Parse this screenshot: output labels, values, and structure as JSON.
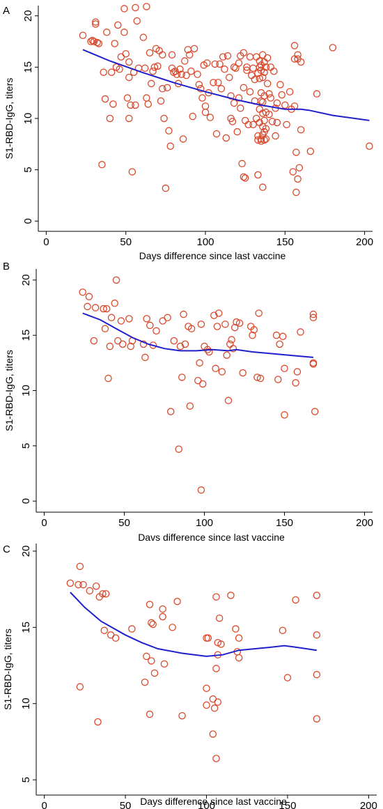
{
  "colors": {
    "point": "#d9482b",
    "trend": "#1f1fcc",
    "axis": "#000000"
  },
  "chart_data": [
    {
      "type": "scatter",
      "panel_label": "A",
      "xlabel": "Days difference since last vaccine",
      "ylabel": "S1-RBD-IgG, titers",
      "xlim": [
        -5,
        205
      ],
      "ylim": [
        -1,
        21
      ],
      "xticks": [
        0,
        50,
        100,
        150,
        200
      ],
      "yticks": [
        0,
        5,
        10,
        15,
        20
      ],
      "grid": false,
      "points": [
        [
          23,
          18.1
        ],
        [
          28,
          17.5
        ],
        [
          29,
          17.6
        ],
        [
          30,
          17.5
        ],
        [
          31,
          19.2
        ],
        [
          31,
          19.4
        ],
        [
          32,
          17.4
        ],
        [
          33,
          17.3
        ],
        [
          35,
          5.5
        ],
        [
          36,
          14.5
        ],
        [
          37,
          11.9
        ],
        [
          38,
          18.4
        ],
        [
          40,
          10.0
        ],
        [
          41,
          14.5
        ],
        [
          42,
          11.4
        ],
        [
          43,
          17.3
        ],
        [
          44,
          15.0
        ],
        [
          45,
          19.1
        ],
        [
          46,
          14.8
        ],
        [
          47,
          16.0
        ],
        [
          49,
          20.7
        ],
        [
          49,
          18.4
        ],
        [
          50,
          16.3
        ],
        [
          51,
          12.0
        ],
        [
          52,
          14.0
        ],
        [
          52,
          10.0
        ],
        [
          52,
          15.5
        ],
        [
          53,
          11.3
        ],
        [
          54,
          4.8
        ],
        [
          55,
          14.5
        ],
        [
          56,
          20.8
        ],
        [
          56,
          11.3
        ],
        [
          57,
          19.5
        ],
        [
          58,
          14.9
        ],
        [
          61,
          17.9
        ],
        [
          62,
          14.9
        ],
        [
          63,
          20.9
        ],
        [
          63,
          12.0
        ],
        [
          64,
          11.4
        ],
        [
          65,
          16.4
        ],
        [
          66,
          13.4
        ],
        [
          67,
          14.6
        ],
        [
          68,
          15.0
        ],
        [
          69,
          16.8
        ],
        [
          70,
          15.1
        ],
        [
          71,
          16.6
        ],
        [
          72,
          11.7
        ],
        [
          73,
          16.2
        ],
        [
          73,
          12.9
        ],
        [
          74,
          10.0
        ],
        [
          75,
          3.2
        ],
        [
          76,
          13.0
        ],
        [
          77,
          8.8
        ],
        [
          78,
          7.3
        ],
        [
          79,
          16.2
        ],
        [
          79,
          14.9
        ],
        [
          80,
          14.5
        ],
        [
          81,
          14.6
        ],
        [
          82,
          14.3
        ],
        [
          83,
          13.4
        ],
        [
          84,
          14.8
        ],
        [
          85,
          14.3
        ],
        [
          86,
          8.0
        ],
        [
          87,
          15.6
        ],
        [
          88,
          14.2
        ],
        [
          89,
          16.7
        ],
        [
          90,
          16.2
        ],
        [
          91,
          14.6
        ],
        [
          92,
          10.2
        ],
        [
          93,
          16.8
        ],
        [
          95,
          14.3
        ],
        [
          96,
          13.3
        ],
        [
          97,
          12.9
        ],
        [
          98,
          12.0
        ],
        [
          99,
          15.2
        ],
        [
          100,
          10.6
        ],
        [
          100,
          11.2
        ],
        [
          101,
          15.4
        ],
        [
          102,
          12.5
        ],
        [
          103,
          10.1
        ],
        [
          105,
          13.5
        ],
        [
          106,
          15.3
        ],
        [
          107,
          8.5
        ],
        [
          108,
          13.5
        ],
        [
          109,
          15.3
        ],
        [
          110,
          12.9
        ],
        [
          111,
          16.0
        ],
        [
          112,
          14.8
        ],
        [
          113,
          8.1
        ],
        [
          114,
          16.1
        ],
        [
          115,
          14.0
        ],
        [
          116,
          10.0
        ],
        [
          116,
          12.2
        ],
        [
          117,
          9.7
        ],
        [
          118,
          11.5
        ],
        [
          118,
          15.0
        ],
        [
          119,
          14.9
        ],
        [
          120,
          8.7
        ],
        [
          121,
          12.0
        ],
        [
          121,
          15.4
        ],
        [
          122,
          16.1
        ],
        [
          122,
          11.0
        ],
        [
          123,
          5.6
        ],
        [
          124,
          13.0
        ],
        [
          124,
          16.4
        ],
        [
          124,
          4.3
        ],
        [
          125,
          9.8
        ],
        [
          125,
          4.2
        ],
        [
          126,
          15.0
        ],
        [
          126,
          14.7
        ],
        [
          127,
          9.4
        ],
        [
          128,
          12.6
        ],
        [
          128,
          16.0
        ],
        [
          129,
          14.2
        ],
        [
          130,
          9.4
        ],
        [
          130,
          14.9
        ],
        [
          131,
          11.7
        ],
        [
          131,
          13.8
        ],
        [
          132,
          16.0
        ],
        [
          132,
          10.0
        ],
        [
          133,
          14.4
        ],
        [
          133,
          7.9
        ],
        [
          133,
          8.3
        ],
        [
          133,
          4.5
        ],
        [
          134,
          15.6
        ],
        [
          134,
          15.0
        ],
        [
          134,
          13.9
        ],
        [
          134,
          10.9
        ],
        [
          134,
          9.6
        ],
        [
          135,
          15.2
        ],
        [
          135,
          14.7
        ],
        [
          135,
          12.5
        ],
        [
          135,
          11.7
        ],
        [
          135,
          8.0
        ],
        [
          135,
          7.8
        ],
        [
          136,
          16.2
        ],
        [
          136,
          14.0
        ],
        [
          136,
          11.6
        ],
        [
          136,
          10.5
        ],
        [
          136,
          9.2
        ],
        [
          136,
          8.4
        ],
        [
          136,
          3.3
        ],
        [
          137,
          15.5
        ],
        [
          137,
          14.5
        ],
        [
          137,
          12.2
        ],
        [
          137,
          9.8
        ],
        [
          137,
          8.7
        ],
        [
          137,
          7.9
        ],
        [
          138,
          15.0
        ],
        [
          138,
          10.6
        ],
        [
          138,
          9.0
        ],
        [
          138,
          8.0
        ],
        [
          139,
          15.9
        ],
        [
          139,
          13.4
        ],
        [
          140,
          12.4
        ],
        [
          140,
          10.4
        ],
        [
          141,
          15.0
        ],
        [
          141,
          12.0
        ],
        [
          142,
          9.7
        ],
        [
          143,
          14.6
        ],
        [
          144,
          11.0
        ],
        [
          144,
          8.3
        ],
        [
          145,
          11.5
        ],
        [
          145,
          9.6
        ],
        [
          147,
          13.3
        ],
        [
          148,
          12.3
        ],
        [
          150,
          11.3
        ],
        [
          151,
          9.4
        ],
        [
          153,
          12.6
        ],
        [
          154,
          10.9
        ],
        [
          155,
          4.8
        ],
        [
          156,
          17.1
        ],
        [
          156,
          15.8
        ],
        [
          156,
          11.2
        ],
        [
          157,
          6.7
        ],
        [
          157,
          2.8
        ],
        [
          158,
          16.2
        ],
        [
          158,
          15.8
        ],
        [
          158,
          4.1
        ],
        [
          159,
          5.2
        ],
        [
          160,
          15.5
        ],
        [
          160,
          8.9
        ],
        [
          166,
          6.8
        ],
        [
          170,
          12.4
        ],
        [
          180,
          16.9
        ],
        [
          203,
          7.3
        ]
      ],
      "trend": [
        [
          23,
          16.7
        ],
        [
          40,
          15.6
        ],
        [
          60,
          14.5
        ],
        [
          80,
          13.5
        ],
        [
          100,
          12.6
        ],
        [
          120,
          11.8
        ],
        [
          135,
          11.3
        ],
        [
          150,
          10.9
        ],
        [
          160,
          10.9
        ],
        [
          165,
          10.8
        ],
        [
          180,
          10.3
        ],
        [
          203,
          9.8
        ]
      ]
    },
    {
      "type": "scatter",
      "panel_label": "B",
      "xlabel": "Davs difference since last vaccine",
      "ylabel": "S1-RBD-IgG, titers",
      "xlim": [
        -5,
        205
      ],
      "ylim": [
        -1,
        21
      ],
      "xticks": [
        0,
        50,
        100,
        150,
        200
      ],
      "yticks": [
        0,
        5,
        10,
        15,
        20
      ],
      "grid": false,
      "points": [
        [
          24,
          18.9
        ],
        [
          27,
          17.6
        ],
        [
          28,
          18.5
        ],
        [
          31,
          14.5
        ],
        [
          32,
          17.5
        ],
        [
          37,
          17.4
        ],
        [
          38,
          15.6
        ],
        [
          39,
          17.4
        ],
        [
          40,
          11.1
        ],
        [
          41,
          14.0
        ],
        [
          42,
          16.6
        ],
        [
          44,
          17.9
        ],
        [
          45,
          20.0
        ],
        [
          46,
          14.5
        ],
        [
          48,
          16.3
        ],
        [
          49,
          14.2
        ],
        [
          53,
          16.5
        ],
        [
          54,
          14.0
        ],
        [
          55,
          14.5
        ],
        [
          62,
          14.2
        ],
        [
          63,
          13.0
        ],
        [
          64,
          16.5
        ],
        [
          66,
          15.9
        ],
        [
          68,
          14.1
        ],
        [
          70,
          15.4
        ],
        [
          74,
          16.3
        ],
        [
          77,
          16.6
        ],
        [
          79,
          8.1
        ],
        [
          81,
          14.5
        ],
        [
          84,
          4.7
        ],
        [
          85,
          14.0
        ],
        [
          86,
          11.2
        ],
        [
          87,
          16.9
        ],
        [
          88,
          14.2
        ],
        [
          90,
          15.8
        ],
        [
          91,
          8.6
        ],
        [
          92,
          15.6
        ],
        [
          96,
          10.9
        ],
        [
          97,
          12.5
        ],
        [
          98,
          16.0
        ],
        [
          98,
          1.0
        ],
        [
          99,
          10.6
        ],
        [
          100,
          14.0
        ],
        [
          102,
          13.7
        ],
        [
          103,
          13.5
        ],
        [
          106,
          16.8
        ],
        [
          107,
          12.0
        ],
        [
          108,
          15.8
        ],
        [
          109,
          17.0
        ],
        [
          111,
          11.7
        ],
        [
          113,
          16.0
        ],
        [
          114,
          13.2
        ],
        [
          115,
          9.1
        ],
        [
          116,
          14.2
        ],
        [
          117,
          14.6
        ],
        [
          118,
          13.8
        ],
        [
          119,
          15.7
        ],
        [
          120,
          16.2
        ],
        [
          122,
          16.1
        ],
        [
          124,
          11.6
        ],
        [
          129,
          15.8
        ],
        [
          130,
          15.0
        ],
        [
          131,
          15.5
        ],
        [
          133,
          11.2
        ],
        [
          134,
          17.0
        ],
        [
          135,
          11.1
        ],
        [
          145,
          15.0
        ],
        [
          146,
          11.0
        ],
        [
          147,
          14.2
        ],
        [
          149,
          14.9
        ],
        [
          150,
          7.8
        ],
        [
          150,
          12.0
        ],
        [
          157,
          10.7
        ],
        [
          158,
          11.7
        ],
        [
          160,
          15.3
        ],
        [
          168,
          16.9
        ],
        [
          168,
          16.6
        ],
        [
          168,
          12.4
        ],
        [
          168,
          12.5
        ],
        [
          169,
          8.1
        ]
      ],
      "trend": [
        [
          24,
          17.0
        ],
        [
          35,
          16.4
        ],
        [
          45,
          15.6
        ],
        [
          55,
          14.8
        ],
        [
          65,
          14.2
        ],
        [
          75,
          13.8
        ],
        [
          85,
          13.6
        ],
        [
          95,
          13.6
        ],
        [
          105,
          13.7
        ],
        [
          115,
          13.6
        ],
        [
          120,
          13.7
        ],
        [
          130,
          13.5
        ],
        [
          145,
          13.3
        ],
        [
          160,
          13.1
        ],
        [
          168,
          13.0
        ]
      ]
    },
    {
      "type": "scatter",
      "panel_label": "C",
      "xlabel": "Days difference since last vaccine",
      "ylabel": "S1-RBD-IgG, titers",
      "xlim": [
        -5,
        205
      ],
      "ylim": [
        4,
        20.5
      ],
      "xticks": [
        0,
        50,
        100,
        150,
        200
      ],
      "yticks": [
        5,
        10,
        15,
        20
      ],
      "grid": false,
      "points": [
        [
          16,
          17.9
        ],
        [
          21,
          17.8
        ],
        [
          22,
          19.0
        ],
        [
          22,
          11.1
        ],
        [
          24,
          17.8
        ],
        [
          28,
          17.4
        ],
        [
          32,
          17.7
        ],
        [
          33,
          8.8
        ],
        [
          34,
          17.0
        ],
        [
          36,
          17.2
        ],
        [
          37,
          14.8
        ],
        [
          38,
          17.2
        ],
        [
          41,
          14.5
        ],
        [
          44,
          14.3
        ],
        [
          54,
          14.9
        ],
        [
          62,
          11.4
        ],
        [
          63,
          13.1
        ],
        [
          65,
          16.5
        ],
        [
          65,
          9.3
        ],
        [
          66,
          12.8
        ],
        [
          66,
          15.3
        ],
        [
          67,
          15.2
        ],
        [
          68,
          12.0
        ],
        [
          73,
          16.2
        ],
        [
          73,
          15.7
        ],
        [
          74,
          12.6
        ],
        [
          79,
          15.0
        ],
        [
          82,
          16.7
        ],
        [
          85,
          9.2
        ],
        [
          100,
          14.3
        ],
        [
          100,
          11.0
        ],
        [
          100,
          9.9
        ],
        [
          101,
          14.3
        ],
        [
          104,
          8.0
        ],
        [
          104,
          10.3
        ],
        [
          105,
          9.7
        ],
        [
          106,
          17.0
        ],
        [
          106,
          6.4
        ],
        [
          106,
          12.3
        ],
        [
          107,
          14.0
        ],
        [
          107,
          13.2
        ],
        [
          107,
          10.1
        ],
        [
          108,
          15.6
        ],
        [
          109,
          13.9
        ],
        [
          115,
          17.1
        ],
        [
          118,
          14.9
        ],
        [
          119,
          13.4
        ],
        [
          120,
          13.0
        ],
        [
          120,
          14.3
        ],
        [
          147,
          14.8
        ],
        [
          150,
          11.7
        ],
        [
          155,
          16.8
        ],
        [
          168,
          17.1
        ],
        [
          168,
          14.5
        ],
        [
          168,
          11.9
        ],
        [
          168,
          9.0
        ]
      ],
      "trend": [
        [
          16,
          17.3
        ],
        [
          25,
          16.3
        ],
        [
          35,
          15.4
        ],
        [
          50,
          14.5
        ],
        [
          60,
          14.0
        ],
        [
          70,
          13.6
        ],
        [
          85,
          13.3
        ],
        [
          100,
          13.1
        ],
        [
          110,
          13.2
        ],
        [
          120,
          13.5
        ],
        [
          130,
          13.6
        ],
        [
          140,
          13.7
        ],
        [
          148,
          13.8
        ],
        [
          155,
          13.7
        ],
        [
          168,
          13.5
        ]
      ]
    }
  ]
}
